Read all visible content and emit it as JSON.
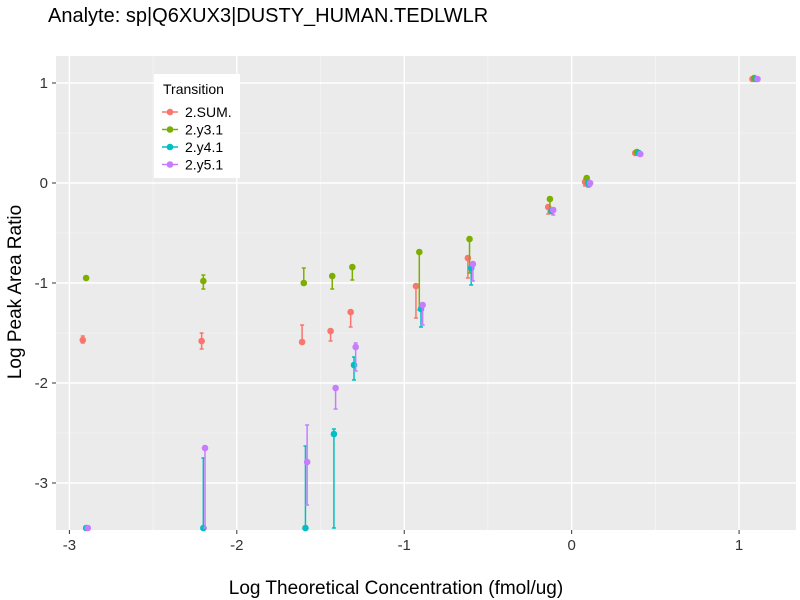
{
  "chart_data": {
    "type": "scatter",
    "title": "Analyte: sp|Q6XUX3|DUSTY_HUMAN.TEDLWLR",
    "xlabel": "Log Theoretical Concentration (fmol/ug)",
    "ylabel": "Log Peak Area Ratio",
    "xlim": [
      -3.08,
      1.34
    ],
    "ylim": [
      -3.47,
      1.27
    ],
    "xticks": [
      -3,
      -2,
      -1,
      0,
      1
    ],
    "yticks": [
      -3,
      -2,
      -1,
      0,
      1
    ],
    "xtick_labels": [
      "-3",
      "-2",
      "-1",
      "0",
      "1"
    ],
    "ytick_labels": [
      "-3",
      "-2",
      "-1",
      "0",
      "1"
    ],
    "grid": true,
    "legend": {
      "title": "Transition",
      "position": "top-left"
    },
    "series": [
      {
        "name": "2.SUM.",
        "color": "#F8766D",
        "points": [
          {
            "x": -2.92,
            "y": -1.57,
            "lo": -1.6,
            "hi": -1.53
          },
          {
            "x": -2.21,
            "y": -1.58,
            "lo": -1.66,
            "hi": -1.5
          },
          {
            "x": -1.61,
            "y": -1.59,
            "lo": -1.59,
            "hi": -1.42
          },
          {
            "x": -1.44,
            "y": -1.48,
            "lo": -1.58,
            "hi": -1.48
          },
          {
            "x": -1.32,
            "y": -1.29,
            "lo": -1.44,
            "hi": -1.29
          },
          {
            "x": -0.93,
            "y": -1.03,
            "lo": -1.35,
            "hi": -1.03
          },
          {
            "x": -0.62,
            "y": -0.75,
            "lo": -0.95,
            "hi": -0.75
          },
          {
            "x": -0.14,
            "y": -0.24,
            "lo": -0.31,
            "hi": -0.24
          },
          {
            "x": 0.08,
            "y": 0.01,
            "lo": -0.03,
            "hi": 0.04
          },
          {
            "x": 0.38,
            "y": 0.3,
            "lo": 0.28,
            "hi": 0.32
          },
          {
            "x": 1.08,
            "y": 1.04,
            "lo": 1.03,
            "hi": 1.05
          }
        ]
      },
      {
        "name": "2.y3.1",
        "color": "#7CAE00",
        "points": [
          {
            "x": -2.9,
            "y": -0.95,
            "lo": -0.95,
            "hi": -0.95
          },
          {
            "x": -2.2,
            "y": -0.98,
            "lo": -1.06,
            "hi": -0.92
          },
          {
            "x": -1.6,
            "y": -1.0,
            "lo": -1.0,
            "hi": -0.85
          },
          {
            "x": -1.43,
            "y": -0.93,
            "lo": -1.06,
            "hi": -0.93
          },
          {
            "x": -1.31,
            "y": -0.84,
            "lo": -0.97,
            "hi": -0.84
          },
          {
            "x": -0.91,
            "y": -0.69,
            "lo": -1.27,
            "hi": -0.69
          },
          {
            "x": -0.61,
            "y": -0.56,
            "lo": -0.9,
            "hi": -0.56
          },
          {
            "x": -0.13,
            "y": -0.16,
            "lo": -0.29,
            "hi": -0.16
          },
          {
            "x": 0.09,
            "y": 0.05,
            "lo": 0.0,
            "hi": 0.05
          },
          {
            "x": 0.39,
            "y": 0.31,
            "lo": 0.29,
            "hi": 0.33
          },
          {
            "x": 1.09,
            "y": 1.05,
            "lo": 1.04,
            "hi": 1.06
          }
        ]
      },
      {
        "name": "2.y4.1",
        "color": "#00BFC4",
        "points": [
          {
            "x": -2.9,
            "y": -3.45,
            "lo": -3.45,
            "hi": -3.45
          },
          {
            "x": -2.2,
            "y": -3.45,
            "lo": -3.45,
            "hi": -2.75
          },
          {
            "x": -1.59,
            "y": -3.45,
            "lo": -3.45,
            "hi": -2.63
          },
          {
            "x": -1.42,
            "y": -2.51,
            "lo": -3.45,
            "hi": -2.46
          },
          {
            "x": -1.3,
            "y": -1.82,
            "lo": -1.97,
            "hi": -1.74
          },
          {
            "x": -0.9,
            "y": -1.26,
            "lo": -1.44,
            "hi": -1.26
          },
          {
            "x": -0.6,
            "y": -0.85,
            "lo": -1.02,
            "hi": -0.85
          },
          {
            "x": -0.12,
            "y": -0.28,
            "lo": -0.3,
            "hi": -0.26
          },
          {
            "x": 0.1,
            "y": 0.0,
            "lo": -0.04,
            "hi": 0.02
          },
          {
            "x": 0.4,
            "y": 0.3,
            "lo": 0.28,
            "hi": 0.32
          },
          {
            "x": 1.1,
            "y": 1.04,
            "lo": 1.03,
            "hi": 1.05
          }
        ]
      },
      {
        "name": "2.y5.1",
        "color": "#C77CFF",
        "points": [
          {
            "x": -2.89,
            "y": -3.45,
            "lo": -3.45,
            "hi": -3.45
          },
          {
            "x": -2.19,
            "y": -2.65,
            "lo": -3.45,
            "hi": -2.63
          },
          {
            "x": -1.58,
            "y": -2.79,
            "lo": -3.22,
            "hi": -2.42
          },
          {
            "x": -1.41,
            "y": -2.05,
            "lo": -2.26,
            "hi": -2.05
          },
          {
            "x": -1.29,
            "y": -1.64,
            "lo": -1.88,
            "hi": -1.6
          },
          {
            "x": -0.89,
            "y": -1.22,
            "lo": -1.42,
            "hi": -1.22
          },
          {
            "x": -0.59,
            "y": -0.81,
            "lo": -0.98,
            "hi": -0.81
          },
          {
            "x": -0.11,
            "y": -0.27,
            "lo": -0.32,
            "hi": -0.25
          },
          {
            "x": 0.11,
            "y": 0.0,
            "lo": -0.03,
            "hi": 0.01
          },
          {
            "x": 0.41,
            "y": 0.29,
            "lo": 0.27,
            "hi": 0.3
          },
          {
            "x": 1.11,
            "y": 1.04,
            "lo": 1.03,
            "hi": 1.05
          }
        ]
      }
    ]
  }
}
